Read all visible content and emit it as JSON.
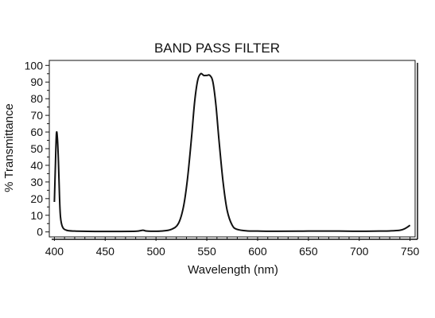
{
  "chart_data": {
    "type": "line",
    "title": "BAND PASS FILTER",
    "xlabel": "Wavelength (nm)",
    "ylabel": "% Transmittance",
    "xlim": [
      395,
      755
    ],
    "ylim": [
      -3,
      103
    ],
    "xticks": [
      400,
      450,
      500,
      550,
      600,
      650,
      700,
      750
    ],
    "xtick_labels": [
      "400",
      "450",
      "500",
      "550",
      "600",
      "650",
      "700",
      "750"
    ],
    "yticks": [
      0,
      10,
      20,
      30,
      40,
      50,
      60,
      70,
      80,
      90,
      100
    ],
    "ytick_labels": [
      "0",
      "10",
      "20",
      "30",
      "40",
      "50",
      "60",
      "70",
      "80",
      "90",
      "100"
    ],
    "grid": false,
    "line_color": "#111111",
    "series": [
      {
        "x": [
          400,
          401,
          402,
          403,
          404,
          405,
          406,
          408,
          412,
          420,
          440,
          460,
          480,
          487,
          490,
          495,
          505,
          515,
          522,
          527,
          531,
          535,
          538,
          541,
          544,
          547,
          550,
          553,
          556,
          559,
          562,
          566,
          570,
          575,
          580,
          590,
          600,
          620,
          650,
          680,
          700,
          720,
          730,
          740,
          745,
          750
        ],
        "y": [
          18,
          40,
          59,
          56,
          42,
          22,
          9,
          3,
          1,
          0.5,
          0.3,
          0.3,
          0.4,
          1.0,
          0.6,
          0.4,
          0.5,
          1.5,
          5,
          15,
          32,
          57,
          78,
          91,
          95,
          94,
          94,
          94,
          90,
          76,
          55,
          30,
          13,
          4,
          1.5,
          0.6,
          0.5,
          0.4,
          0.5,
          0.5,
          0.4,
          0.5,
          0.6,
          1.0,
          2.0,
          4.0
        ]
      }
    ]
  }
}
